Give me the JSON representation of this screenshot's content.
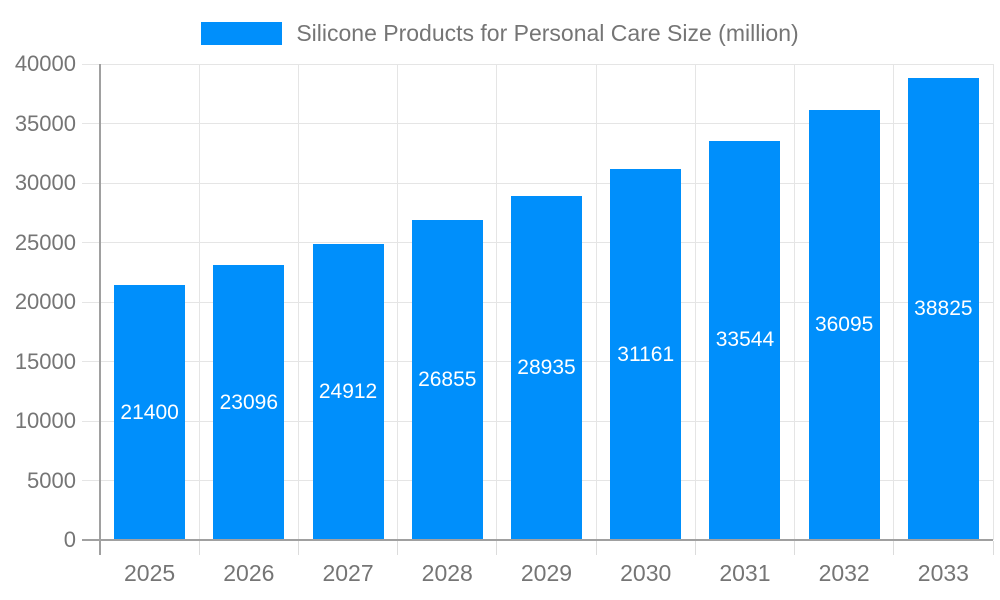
{
  "chart_data": {
    "type": "bar",
    "title": "Silicone Products for Personal Care Size (million)",
    "legend": {
      "label": "Silicone Products for Personal Care Size (million)",
      "position": "top",
      "swatch_color": "#008FFB"
    },
    "categories": [
      "2025",
      "2026",
      "2027",
      "2028",
      "2029",
      "2030",
      "2031",
      "2032",
      "2033"
    ],
    "series": [
      {
        "name": "Silicone Products for Personal Care Size (million)",
        "values": [
          21400,
          23096,
          24912,
          26855,
          28935,
          31161,
          33544,
          36095,
          38825
        ]
      }
    ],
    "values": [
      21400,
      23096,
      24912,
      26855,
      28935,
      31161,
      33544,
      36095,
      38825
    ],
    "bar_value_labels": [
      "21400",
      "23096",
      "24912",
      "26855",
      "28935",
      "31161",
      "33544",
      "36095",
      "38825"
    ],
    "xlabel": "",
    "ylabel": "",
    "ylim": [
      0,
      40000
    ],
    "ytick_step": 5000,
    "ytick_labels": [
      "0",
      "5000",
      "10000",
      "15000",
      "20000",
      "25000",
      "30000",
      "35000",
      "40000"
    ],
    "grid": true,
    "bar_labels_visible": true,
    "colors": {
      "bar": "#008FFB",
      "bar_label": "#FFFFFF",
      "axis_text": "#757575",
      "grid_line": "#E5E5E5",
      "axis_line": "#A0A0A0"
    }
  }
}
